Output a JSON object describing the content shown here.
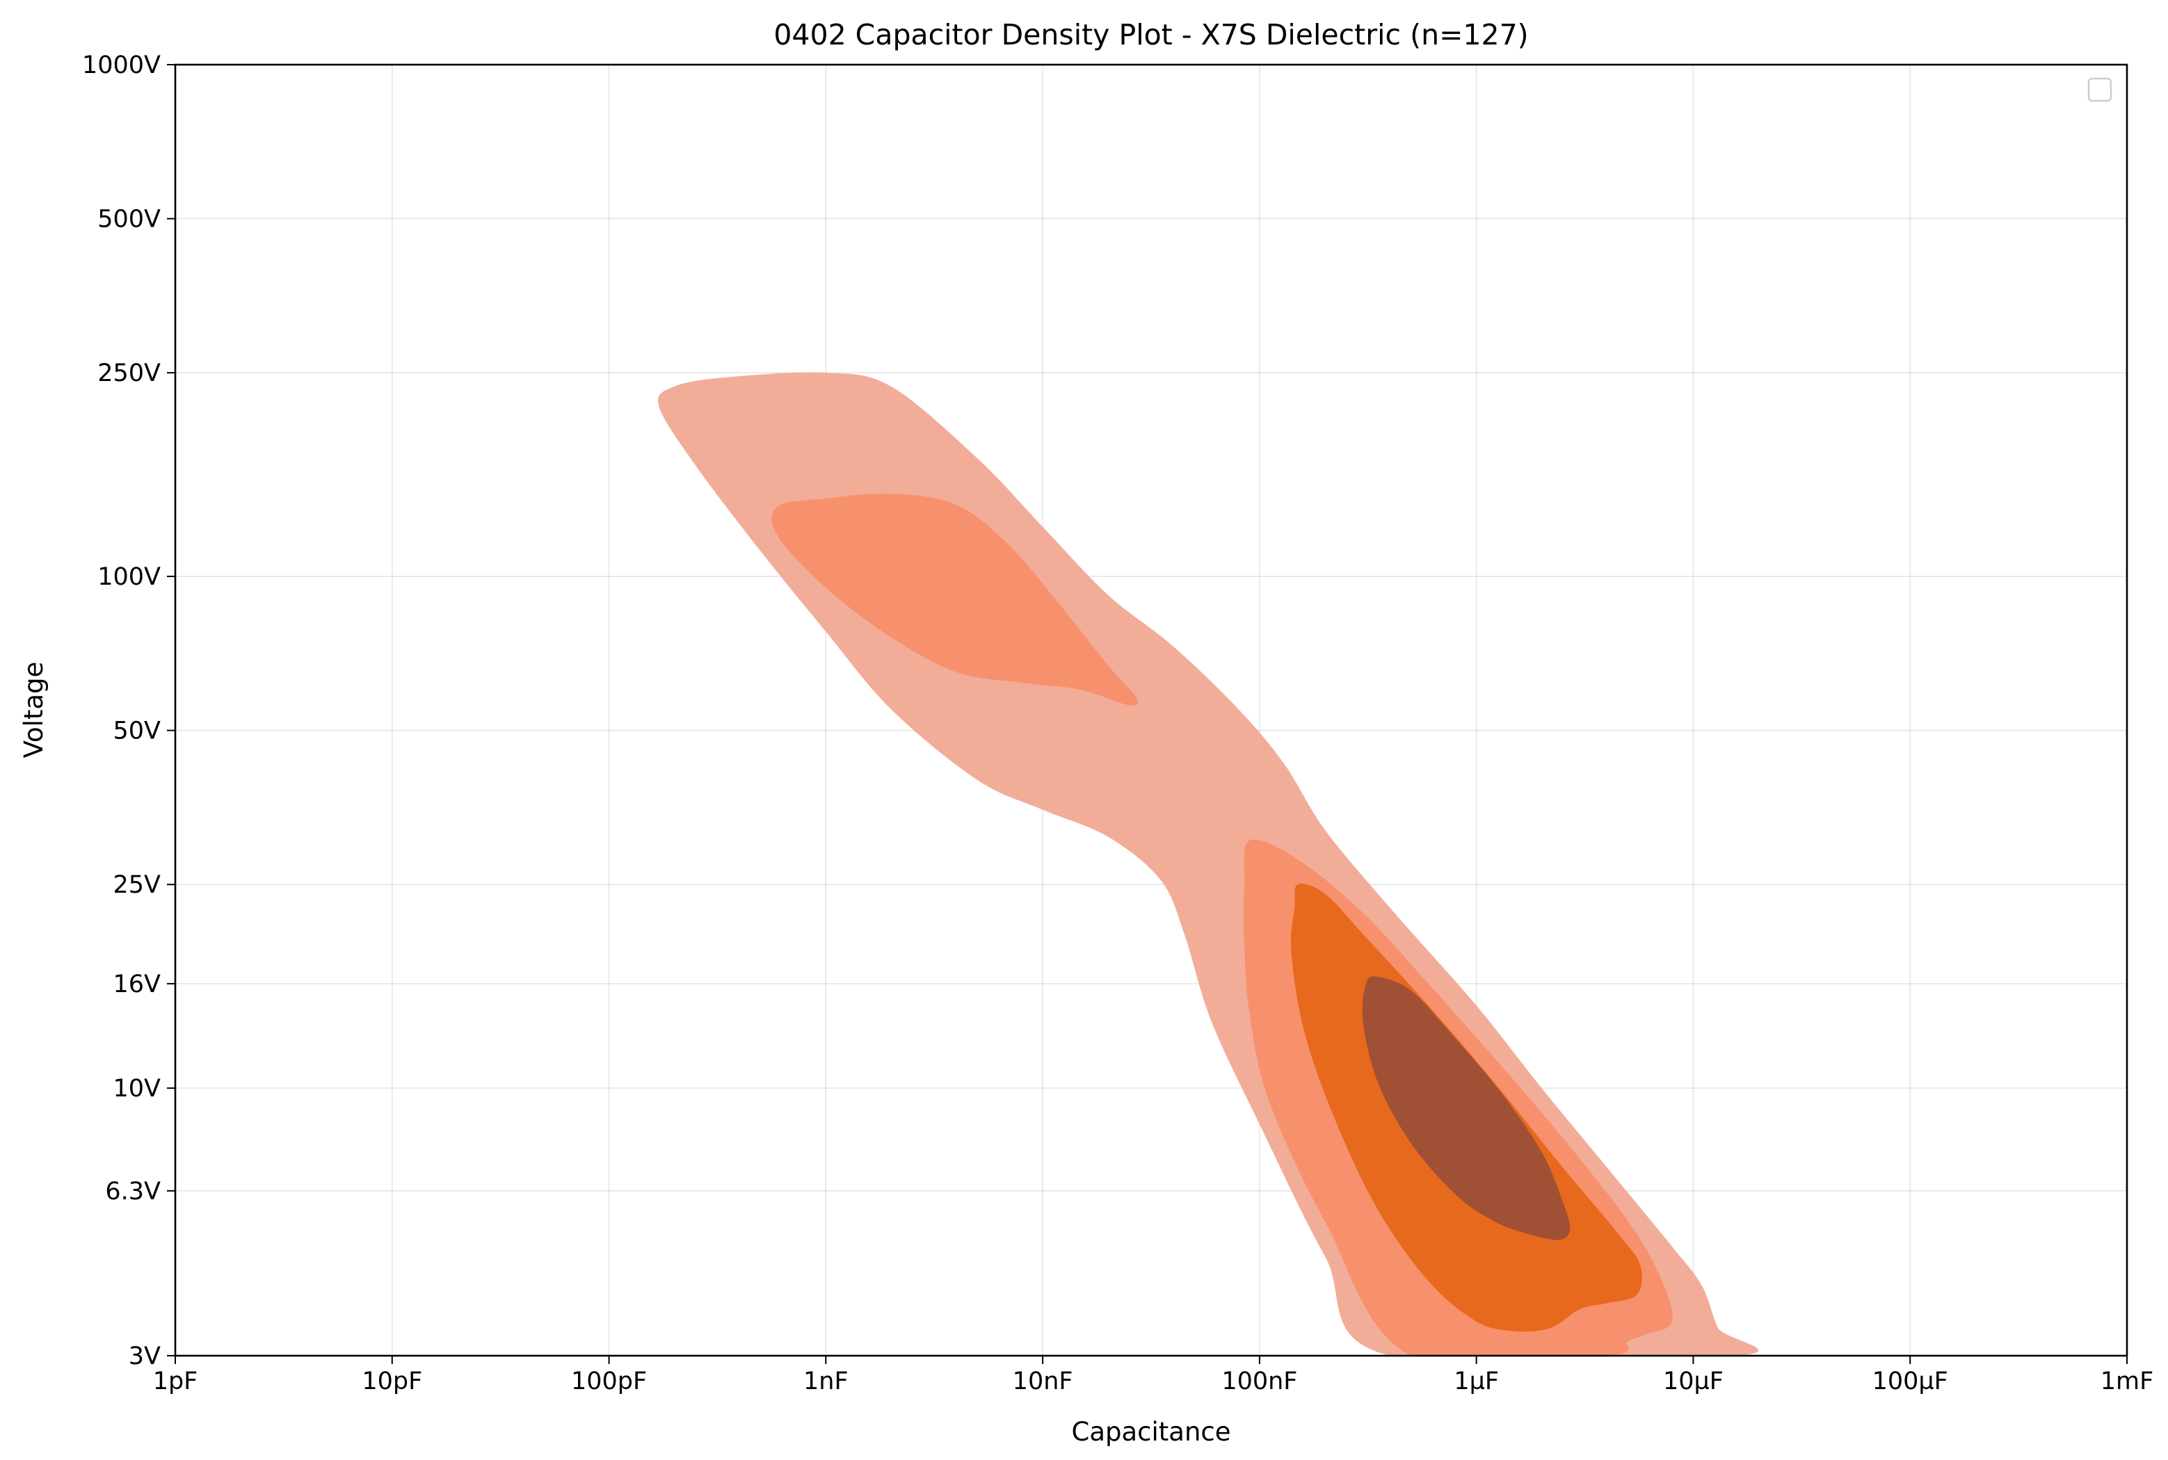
{
  "chart_data": {
    "type": "contour",
    "title": "0402 Capacitor Density Plot - X7S Dielectric (n=127)",
    "xlabel": "Capacitance",
    "ylabel": "Voltage",
    "x_scale": "log",
    "y_scale": "log",
    "xlim": [
      1e-12,
      0.001
    ],
    "ylim": [
      3,
      1000
    ],
    "x_ticks": [
      {
        "value": 1e-12,
        "label": "1pF"
      },
      {
        "value": 1e-11,
        "label": "10pF"
      },
      {
        "value": 1e-10,
        "label": "100pF"
      },
      {
        "value": 1e-09,
        "label": "1nF"
      },
      {
        "value": 1e-08,
        "label": "10nF"
      },
      {
        "value": 1e-07,
        "label": "100nF"
      },
      {
        "value": 1e-06,
        "label": "1µF"
      },
      {
        "value": 1e-05,
        "label": "10µF"
      },
      {
        "value": 0.0001,
        "label": "100µF"
      },
      {
        "value": 0.001,
        "label": "1mF"
      }
    ],
    "y_ticks": [
      {
        "value": 3,
        "label": "3V"
      },
      {
        "value": 6.3,
        "label": "6.3V"
      },
      {
        "value": 10,
        "label": "10V"
      },
      {
        "value": 16,
        "label": "16V"
      },
      {
        "value": 25,
        "label": "25V"
      },
      {
        "value": 50,
        "label": "50V"
      },
      {
        "value": 100,
        "label": "100V"
      },
      {
        "value": 250,
        "label": "250V"
      },
      {
        "value": 500,
        "label": "500V"
      },
      {
        "value": 1000,
        "label": "1000V"
      }
    ],
    "grid": true,
    "legend": {
      "position": "top-right",
      "entries": []
    },
    "levels": [
      {
        "level": 1,
        "color": "#f2ad99",
        "regions": [
          [
            [
              2e-10,
              235
            ],
            [
              3.5e-10,
              245
            ],
            [
              1e-09,
              250
            ],
            [
              2e-09,
              235
            ],
            [
              5e-09,
              170
            ],
            [
              1e-08,
              125
            ],
            [
              2e-08,
              92
            ],
            [
              4e-08,
              73
            ],
            [
              8e-08,
              55
            ],
            [
              1.3e-07,
              43
            ],
            [
              2e-07,
              32
            ],
            [
              4e-07,
              22.5
            ],
            [
              1e-06,
              14.5
            ],
            [
              2e-06,
              10
            ],
            [
              4e-06,
              7
            ],
            [
              8e-06,
              4.9
            ],
            [
              1.1e-05,
              4.1
            ],
            [
              1.3e-05,
              3.4
            ],
            [
              1.6e-05,
              3
            ],
            [
              4e-07,
              3
            ],
            [
              2e-07,
              4.7
            ],
            [
              1e-07,
              8.5
            ],
            [
              6e-08,
              13.5
            ],
            [
              4.5e-08,
              20
            ],
            [
              3.5e-08,
              25.5
            ],
            [
              2e-08,
              31
            ],
            [
              1e-08,
              35
            ],
            [
              5e-09,
              40
            ],
            [
              2e-09,
              55
            ],
            [
              1e-09,
              78
            ],
            [
              5e-10,
              112
            ],
            [
              2.5e-10,
              165
            ],
            [
              1.7e-10,
              215
            ]
          ]
        ]
      },
      {
        "level": 2,
        "color": "#f7906c",
        "regions": [
          [
            [
              6e-10,
              137
            ],
            [
              1e-09,
              142
            ],
            [
              2e-09,
              145
            ],
            [
              4e-09,
              138
            ],
            [
              7e-09,
              115
            ],
            [
              1.2e-08,
              88
            ],
            [
              2e-08,
              67
            ],
            [
              2.7e-08,
              58
            ],
            [
              2.5e-08,
              56
            ],
            [
              1.5e-08,
              60
            ],
            [
              8e-09,
              62
            ],
            [
              4e-09,
              65
            ],
            [
              2e-09,
              76
            ],
            [
              1e-09,
              95
            ],
            [
              6e-10,
              120
            ]
          ],
          [
            [
              9e-08,
              30.5
            ],
            [
              1.5e-07,
              28
            ],
            [
              3e-07,
              22
            ],
            [
              6e-07,
              16
            ],
            [
              1.2e-06,
              11.5
            ],
            [
              2.5e-06,
              8
            ],
            [
              5e-06,
              5.5
            ],
            [
              7e-06,
              4.3
            ],
            [
              8e-06,
              3.5
            ],
            [
              6e-06,
              3.3
            ],
            [
              5e-06,
              3.2
            ],
            [
              4e-06,
              3
            ],
            [
              5e-07,
              3
            ],
            [
              2e-07,
              5.5
            ],
            [
              1.1e-07,
              9.5
            ],
            [
              9e-08,
              14
            ],
            [
              8.5e-08,
              19
            ],
            [
              8.5e-08,
              25
            ]
          ]
        ]
      },
      {
        "level": 3,
        "color": "#e7691d",
        "regions": [
          [
            [
              1.5e-07,
              25
            ],
            [
              2e-07,
              24
            ],
            [
              3e-07,
              20
            ],
            [
              6e-07,
              14.5
            ],
            [
              1.2e-06,
              10.3
            ],
            [
              2.5e-06,
              7
            ],
            [
              4.5e-06,
              5.2
            ],
            [
              5.7e-06,
              4.5
            ],
            [
              5.5e-06,
              3.95
            ],
            [
              4e-06,
              3.8
            ],
            [
              3e-06,
              3.7
            ],
            [
              2.2e-06,
              3.4
            ],
            [
              1.5e-06,
              3.35
            ],
            [
              1e-06,
              3.5
            ],
            [
              6e-07,
              4.2
            ],
            [
              3.5e-07,
              5.8
            ],
            [
              2.2e-07,
              8.8
            ],
            [
              1.6e-07,
              13
            ],
            [
              1.4e-07,
              18.5
            ],
            [
              1.45e-07,
              22.5
            ]
          ]
        ]
      },
      {
        "level": 4,
        "color": "#a05034",
        "regions": [
          [
            [
              3.5e-07,
              16.5
            ],
            [
              5e-07,
              15.5
            ],
            [
              8e-07,
              12.5
            ],
            [
              1.3e-06,
              9.8
            ],
            [
              2e-06,
              7.5
            ],
            [
              2.5e-06,
              6
            ],
            [
              2.7e-06,
              5.3
            ],
            [
              2.4e-06,
              5.05
            ],
            [
              1.7e-06,
              5.2
            ],
            [
              1.2e-06,
              5.5
            ],
            [
              8e-07,
              6.2
            ],
            [
              5e-07,
              7.8
            ],
            [
              3.5e-07,
              10.3
            ],
            [
              3e-07,
              13.5
            ],
            [
              3.1e-07,
              16
            ]
          ]
        ]
      }
    ]
  }
}
